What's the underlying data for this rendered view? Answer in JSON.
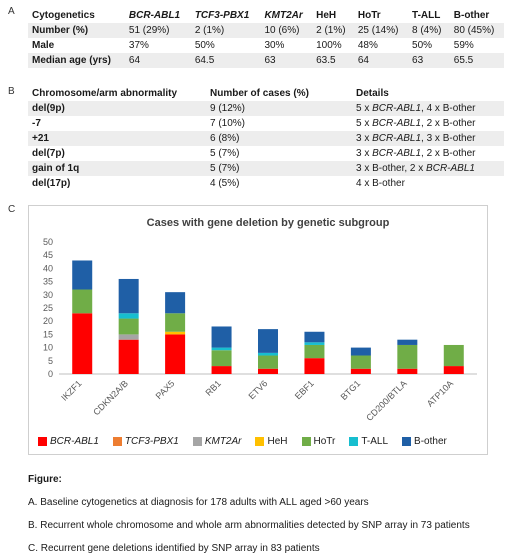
{
  "panel_a": {
    "letter": "A",
    "columns": [
      "Cytogenetics",
      "BCR-ABL1",
      "TCF3-PBX1",
      "KMT2Ar",
      "HeH",
      "HoTr",
      "T-ALL",
      "B-other"
    ],
    "rows": [
      {
        "label": "Number (%)",
        "values": [
          "51 (29%)",
          "2 (1%)",
          "10 (6%)",
          "2 (1%)",
          "25 (14%)",
          "8 (4%)",
          "80 (45%)"
        ]
      },
      {
        "label": "Male",
        "values": [
          "37%",
          "50%",
          "30%",
          "100%",
          "48%",
          "50%",
          "59%"
        ]
      },
      {
        "label": "Median age (yrs)",
        "values": [
          "64",
          "64.5",
          "63",
          "63.5",
          "64",
          "63",
          "65.5"
        ]
      }
    ]
  },
  "panel_b": {
    "letter": "B",
    "columns": [
      "Chromosome/arm abnormality",
      "Number of cases (%)",
      "Details"
    ],
    "rows": [
      {
        "label": "del(9p)",
        "count": "9 (12%)",
        "details": [
          {
            "t": "5 x "
          },
          {
            "t": "BCR-ABL1",
            "i": true
          },
          {
            "t": ", 4 x B-other"
          }
        ]
      },
      {
        "label": "-7",
        "count": "7 (10%)",
        "details": [
          {
            "t": "5 x "
          },
          {
            "t": "BCR-ABL1",
            "i": true
          },
          {
            "t": ", 2 x B-other"
          }
        ]
      },
      {
        "label": "+21",
        "count": "6 (8%)",
        "details": [
          {
            "t": "3 x "
          },
          {
            "t": "BCR-ABL1",
            "i": true
          },
          {
            "t": ", 3 x B-other"
          }
        ]
      },
      {
        "label": "del(7p)",
        "count": "5 (7%)",
        "details": [
          {
            "t": "3 x "
          },
          {
            "t": "BCR-ABL1",
            "i": true
          },
          {
            "t": ", 2 x B-other"
          }
        ]
      },
      {
        "label": "gain of 1q",
        "count": "5 (7%)",
        "details": [
          {
            "t": "3 x B-other, 2 x "
          },
          {
            "t": "BCR-ABL1",
            "i": true
          }
        ]
      },
      {
        "label": "del(17p)",
        "count": "4 (5%)",
        "details": [
          {
            "t": "4 x B-other"
          }
        ]
      }
    ]
  },
  "panel_c_letter": "C",
  "chart_data": {
    "type": "bar",
    "stacked": true,
    "title": "Cases with gene deletion by genetic subgroup",
    "xlabel": "",
    "ylabel": "",
    "ylim": [
      0,
      50
    ],
    "yticks": [
      0,
      5,
      10,
      15,
      20,
      25,
      30,
      35,
      40,
      45,
      50
    ],
    "grid": false,
    "legend_position": "bottom",
    "categories": [
      "IKZF1",
      "CDKN2A/B",
      "PAX5",
      "RB1",
      "ETV6",
      "EBF1",
      "BTG1",
      "CD200/BTLA",
      "ATP10A"
    ],
    "series": [
      {
        "name": "BCR-ABL1",
        "color": "#ff0000",
        "values": [
          23,
          13,
          15,
          3,
          2,
          6,
          2,
          2,
          3
        ]
      },
      {
        "name": "TCF3-PBX1",
        "color": "#ed7d31",
        "values": [
          0,
          0,
          0,
          0,
          0,
          0,
          0,
          0,
          0
        ]
      },
      {
        "name": "KMT2Ar",
        "color": "#a5a5a5",
        "values": [
          0,
          2,
          0,
          0,
          0,
          0,
          0,
          0,
          0
        ]
      },
      {
        "name": "HeH",
        "color": "#ffc000",
        "values": [
          0,
          0,
          1,
          0,
          0,
          0,
          0,
          0,
          0
        ]
      },
      {
        "name": "HoTr",
        "color": "#70ad47",
        "values": [
          9,
          6,
          7,
          6,
          5,
          5,
          5,
          9,
          8
        ]
      },
      {
        "name": "T-ALL",
        "color": "#17becf",
        "values": [
          0,
          2,
          0,
          1,
          1,
          1,
          0,
          0,
          0
        ]
      },
      {
        "name": "B-other",
        "color": "#1f5fa6",
        "values": [
          11,
          13,
          8,
          8,
          9,
          4,
          3,
          2,
          0
        ]
      }
    ]
  },
  "figure": {
    "title": "Figure:",
    "captions": [
      "A. Baseline cytogenetics at diagnosis for 178 adults with ALL aged >60 years",
      "B. Recurrent whole chromosome and whole arm abnormalities detected by SNP array in 73 patients",
      "C. Recurrent gene deletions identified by SNP array in 83 patients"
    ]
  }
}
